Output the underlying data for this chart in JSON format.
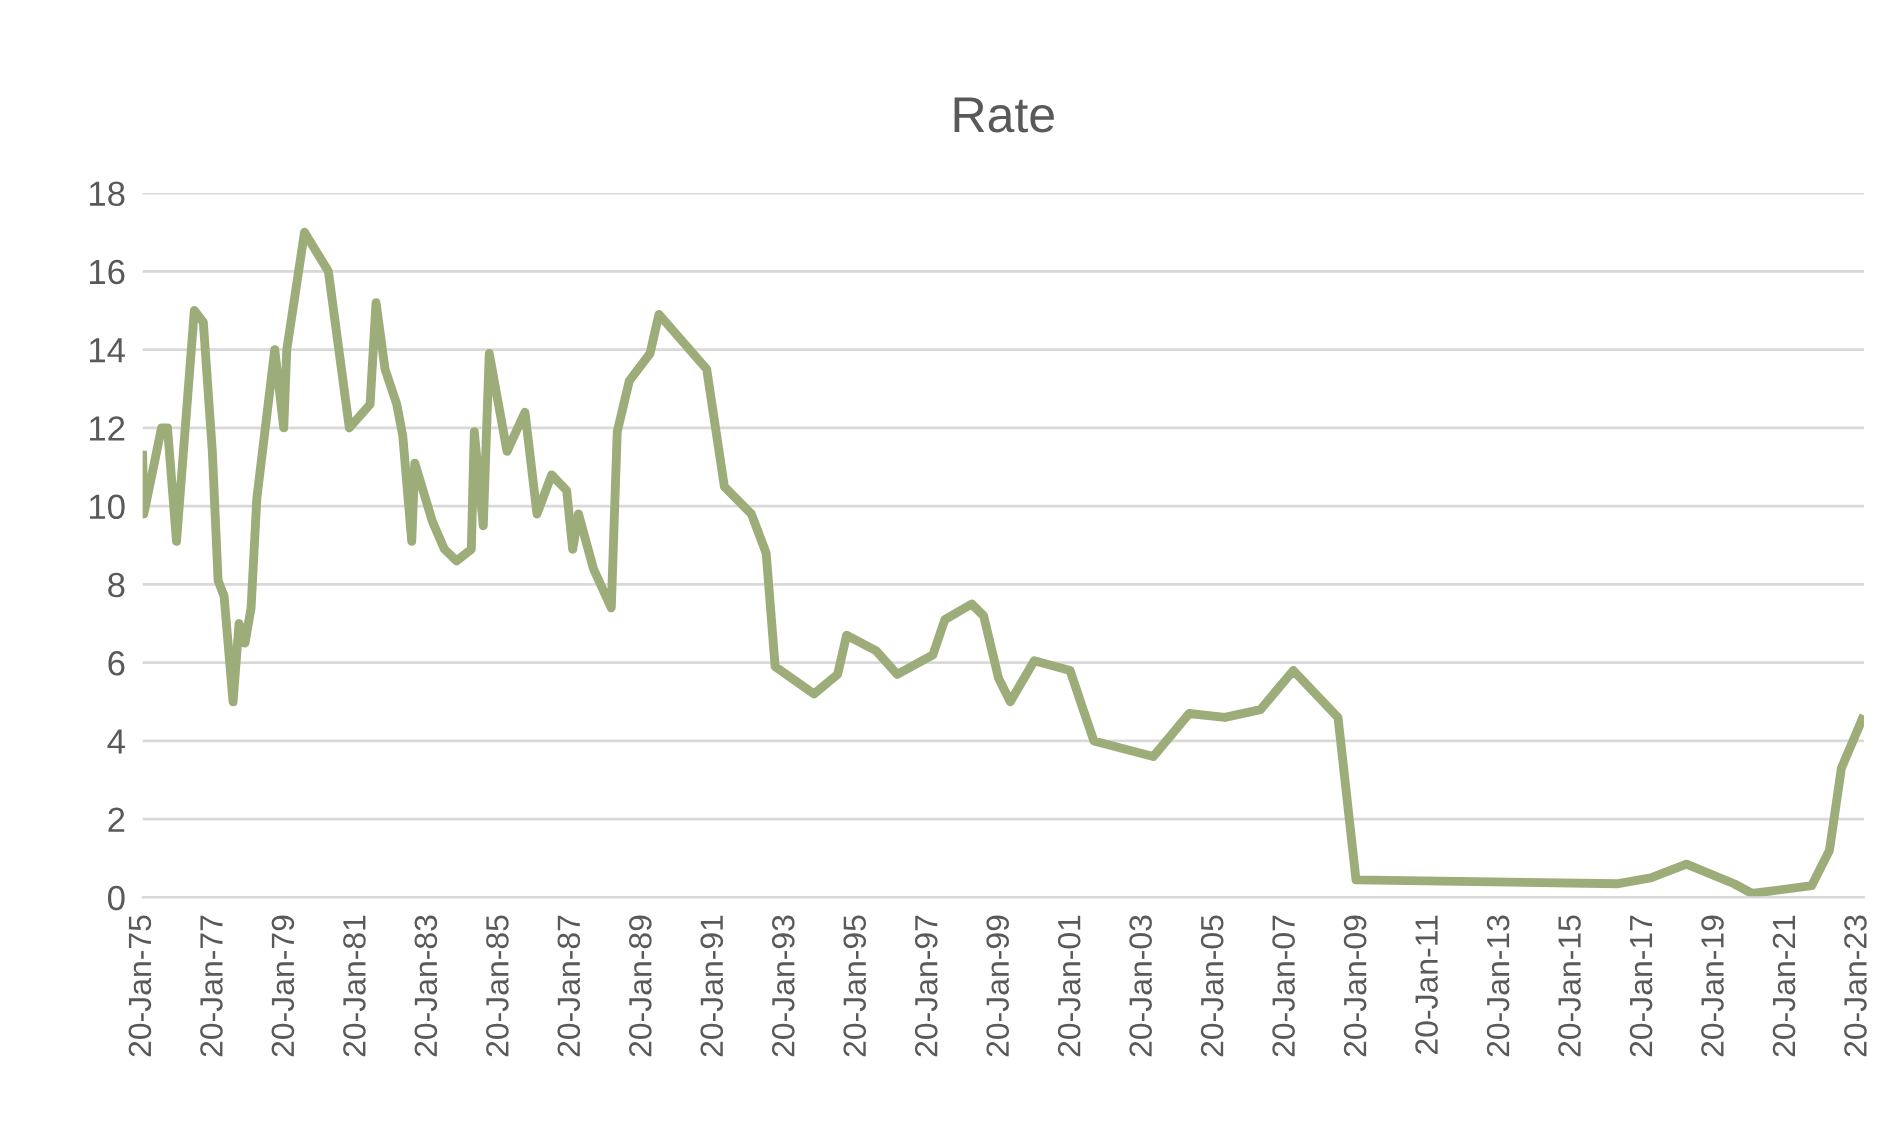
{
  "chart_data": {
    "type": "line",
    "title": "Rate",
    "x": [
      "1975-01-20",
      "1975-02",
      "1975-08",
      "1975-10",
      "1976-01",
      "1976-07",
      "1976-10",
      "1977-01",
      "1977-03",
      "1977-05",
      "1977-08",
      "1977-10",
      "1977-12",
      "1978-02",
      "1978-04",
      "1978-10",
      "1979-01",
      "1979-02",
      "1979-08",
      "1980-04",
      "1980-11",
      "1981-06",
      "1981-08",
      "1981-11",
      "1982-03",
      "1982-05",
      "1982-08",
      "1982-09",
      "1983-03",
      "1983-07",
      "1983-11",
      "1984-04",
      "1984-05",
      "1984-08",
      "1984-10",
      "1985-04",
      "1985-10",
      "1986-02",
      "1986-07",
      "1986-12",
      "1987-02",
      "1987-04",
      "1987-09",
      "1988-03",
      "1988-05",
      "1988-09",
      "1989-04",
      "1989-07",
      "1990-11",
      "1991-05",
      "1992-02",
      "1992-07",
      "1992-10",
      "1993-11",
      "1994-07",
      "1994-10",
      "1995-08",
      "1996-03",
      "1997-03",
      "1997-07",
      "1998-04",
      "1998-08",
      "1999-01",
      "1999-05",
      "2000-01",
      "2001-01",
      "2001-05",
      "2001-09",
      "2003-05",
      "2004-05",
      "2005-05",
      "2006-05",
      "2007-04",
      "2008-07",
      "2009-01",
      "2016-05",
      "2017-04",
      "2018-04",
      "2019-08",
      "2020-02",
      "2021-10",
      "2022-04",
      "2022-08",
      "2023-03"
    ],
    "series": [
      {
        "color": "#9cad7a",
        "values": [
          11.3,
          9.8,
          12.0,
          12.0,
          9.1,
          15.0,
          14.7,
          11.4,
          8.1,
          7.7,
          5.0,
          7.0,
          6.5,
          7.4,
          10.2,
          14.0,
          12.0,
          14.0,
          17.0,
          16.0,
          12.0,
          12.6,
          15.2,
          13.5,
          12.6,
          11.8,
          9.1,
          11.1,
          9.6,
          8.9,
          8.6,
          8.9,
          11.9,
          9.5,
          13.9,
          11.4,
          12.4,
          9.8,
          10.8,
          10.4,
          8.9,
          9.8,
          8.4,
          7.4,
          11.9,
          13.2,
          13.9,
          14.9,
          13.5,
          10.5,
          9.8,
          8.8,
          5.9,
          5.2,
          5.7,
          6.7,
          6.3,
          5.7,
          6.2,
          7.1,
          7.5,
          7.2,
          5.6,
          5.0,
          6.05,
          5.8,
          4.9,
          4.0,
          3.6,
          4.7,
          4.6,
          4.8,
          5.8,
          4.6,
          0.45,
          0.35,
          0.5,
          0.85,
          0.35,
          0.1,
          0.3,
          1.2,
          3.3,
          4.55
        ]
      }
    ],
    "xlim": [
      "1975-01-20",
      "2023-03-20"
    ],
    "xticks": [
      {
        "value": "1975-01-20",
        "label": "20-Jan-75"
      },
      {
        "value": "1977-01-20",
        "label": "20-Jan-77"
      },
      {
        "value": "1979-01-20",
        "label": "20-Jan-79"
      },
      {
        "value": "1981-01-20",
        "label": "20-Jan-81"
      },
      {
        "value": "1983-01-20",
        "label": "20-Jan-83"
      },
      {
        "value": "1985-01-20",
        "label": "20-Jan-85"
      },
      {
        "value": "1987-01-20",
        "label": "20-Jan-87"
      },
      {
        "value": "1989-01-20",
        "label": "20-Jan-89"
      },
      {
        "value": "1991-01-20",
        "label": "20-Jan-91"
      },
      {
        "value": "1993-01-20",
        "label": "20-Jan-93"
      },
      {
        "value": "1995-01-20",
        "label": "20-Jan-95"
      },
      {
        "value": "1997-01-20",
        "label": "20-Jan-97"
      },
      {
        "value": "1999-01-20",
        "label": "20-Jan-99"
      },
      {
        "value": "2001-01-20",
        "label": "20-Jan-01"
      },
      {
        "value": "2003-01-20",
        "label": "20-Jan-03"
      },
      {
        "value": "2005-01-20",
        "label": "20-Jan-05"
      },
      {
        "value": "2007-01-20",
        "label": "20-Jan-07"
      },
      {
        "value": "2009-01-20",
        "label": "20-Jan-09"
      },
      {
        "value": "2011-01-20",
        "label": "20-Jan-11"
      },
      {
        "value": "2013-01-20",
        "label": "20-Jan-13"
      },
      {
        "value": "2015-01-20",
        "label": "20-Jan-15"
      },
      {
        "value": "2017-01-20",
        "label": "20-Jan-17"
      },
      {
        "value": "2019-01-20",
        "label": "20-Jan-19"
      },
      {
        "value": "2021-01-20",
        "label": "20-Jan-21"
      },
      {
        "value": "2023-01-20",
        "label": "20-Jan-23"
      }
    ],
    "ylim": [
      0,
      18
    ],
    "yticks": [
      0,
      2,
      4,
      6,
      8,
      10,
      12,
      14,
      16,
      18
    ],
    "grid": "y",
    "line_style": "solid",
    "marker": "none"
  }
}
